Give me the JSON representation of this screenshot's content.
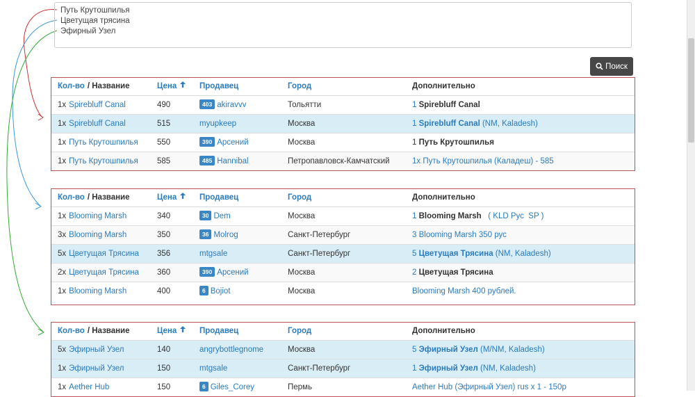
{
  "textarea": {
    "lines": [
      "Путь Крутошпилья",
      "Цветущая трясина",
      "Эфирный Узел"
    ]
  },
  "search_button": "Поиск",
  "table_header": {
    "qty": "Кол-во",
    "name": "/ Название",
    "price": "Цена",
    "seller": "Продавец",
    "city": "Город",
    "extra": "Дополнительно"
  },
  "tables": [
    {
      "rows": [
        {
          "qty": "1x",
          "name": "Spirebluff Canal",
          "price": 490,
          "badge": 403,
          "seller": "akiravvv",
          "city": "Тольятти",
          "highlight": false,
          "extra": [
            {
              "text": "1",
              "style": "link"
            },
            {
              "text": " Spirebluff Canal",
              "style": "bold"
            }
          ]
        },
        {
          "qty": "1x",
          "name": "Spirebluff Canal",
          "price": 515,
          "badge": null,
          "seller": "myupkeep",
          "city": "Москва",
          "highlight": true,
          "extra": [
            {
              "text": "1 ",
              "style": "link"
            },
            {
              "text": "Spirebluff Canal",
              "style": "link-bold"
            },
            {
              "text": " (NM, Kaladesh)",
              "style": "link"
            }
          ]
        },
        {
          "qty": "1x",
          "name": "Путь Крутошпилья",
          "price": 550,
          "badge": 390,
          "seller": "Арсений",
          "city": "Москва",
          "highlight": false,
          "extra": [
            {
              "text": "1 ",
              "style": "plain"
            },
            {
              "text": "Путь Крутошпилья",
              "style": "bold"
            }
          ]
        },
        {
          "qty": "1x",
          "name": "Путь Крутошпилья",
          "price": 585,
          "badge": 485,
          "seller": "Hannibal",
          "city": "Петропавловск-Камчатский",
          "highlight": false,
          "extra": [
            {
              "text": "1x Путь Крутошпилья (Каладеш) - 585",
              "style": "link"
            }
          ]
        }
      ]
    },
    {
      "rows": [
        {
          "qty": "1x",
          "name": "Blooming Marsh",
          "price": 340,
          "badge": 30,
          "seller": "Dem",
          "city": "Москва",
          "highlight": false,
          "extra": [
            {
              "text": "1 ",
              "style": "link"
            },
            {
              "text": "Blooming Marsh",
              "style": "bold"
            },
            {
              "text": "   ( KLD Рус  SP )",
              "style": "link"
            }
          ]
        },
        {
          "qty": "3x",
          "name": "Blooming Marsh",
          "price": 350,
          "badge": 36,
          "seller": "Molrog",
          "city": "Санкт-Петербург",
          "highlight": false,
          "extra": [
            {
              "text": "3 Blooming Marsh 350 рус",
              "style": "link"
            }
          ]
        },
        {
          "qty": "5x",
          "name": "Цветущая Трясина",
          "price": 356,
          "badge": null,
          "seller": "mtgsale",
          "city": "Санкт-Петербург",
          "highlight": true,
          "extra": [
            {
              "text": "5 ",
              "style": "link"
            },
            {
              "text": "Цветущая Трясина",
              "style": "link-bold"
            },
            {
              "text": " (NM, Kaladesh)",
              "style": "link"
            }
          ]
        },
        {
          "qty": "2x",
          "name": "Цветущая Трясина",
          "price": 360,
          "badge": 390,
          "seller": "Арсений",
          "city": "Москва",
          "highlight": false,
          "extra": [
            {
              "text": "2 ",
              "style": "link"
            },
            {
              "text": "Цветущая Трясина",
              "style": "bold"
            }
          ]
        },
        {
          "qty": "1x",
          "name": "Blooming Marsh",
          "price": 400,
          "badge": 6,
          "seller": "Bojiot",
          "city": "Москва",
          "highlight": false,
          "extra": [
            {
              "text": "Blooming Marsh 400 рублей.",
              "style": "link"
            }
          ]
        }
      ]
    },
    {
      "rows": [
        {
          "qty": "5x",
          "name": "Эфирный Узел",
          "price": 140,
          "badge": null,
          "seller": "angrybottlegnome",
          "city": "Москва",
          "highlight": true,
          "extra": [
            {
              "text": "5 ",
              "style": "link"
            },
            {
              "text": "Эфирный Узел",
              "style": "link-bold"
            },
            {
              "text": " (M/NM, Kaladesh)",
              "style": "link"
            }
          ]
        },
        {
          "qty": "1x",
          "name": "Эфирный Узел",
          "price": 150,
          "badge": null,
          "seller": "mtgsale",
          "city": "Санкт-Петербург",
          "highlight": true,
          "extra": [
            {
              "text": "1 ",
              "style": "link"
            },
            {
              "text": "Эфирный Узел",
              "style": "link-bold"
            },
            {
              "text": " (NM, Kaladesh)",
              "style": "link"
            }
          ]
        },
        {
          "qty": "1x",
          "name": "Aether Hub",
          "price": 150,
          "badge": 6,
          "seller": "Giles_Corey",
          "city": "Пермь",
          "highlight": false,
          "extra": [
            {
              "text": "Aether Hub (Эфирный Узел) rus x 1 - 150р",
              "style": "link"
            }
          ]
        }
      ]
    }
  ]
}
